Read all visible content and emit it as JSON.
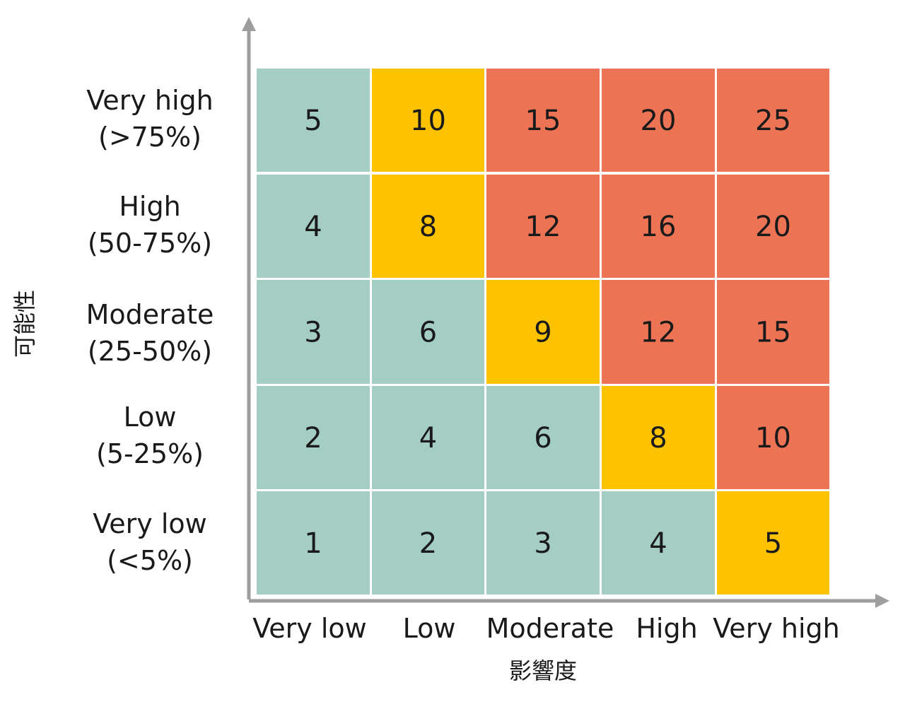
{
  "chart_data": {
    "type": "heatmap",
    "title": "",
    "xlabel": "影響度",
    "ylabel": "可能性",
    "x_categories": [
      "Very low",
      "Low",
      "Moderate",
      "High",
      "Very high"
    ],
    "y_categories": [
      {
        "line1": "Very low",
        "line2": "(<5%)"
      },
      {
        "line1": "Low",
        "line2": "(5-25%)"
      },
      {
        "line1": "Moderate",
        "line2": "(25-50%)"
      },
      {
        "line1": "High",
        "line2": "(50-75%)"
      },
      {
        "line1": "Very high",
        "line2": "(>75%)"
      }
    ],
    "values": [
      [
        1,
        2,
        3,
        4,
        5
      ],
      [
        2,
        4,
        6,
        8,
        10
      ],
      [
        3,
        6,
        9,
        12,
        15
      ],
      [
        4,
        8,
        12,
        16,
        20
      ],
      [
        5,
        10,
        15,
        20,
        25
      ]
    ],
    "levels": [
      [
        "low",
        "low",
        "low",
        "low",
        "medium"
      ],
      [
        "low",
        "low",
        "low",
        "medium",
        "high"
      ],
      [
        "low",
        "low",
        "medium",
        "high",
        "high"
      ],
      [
        "low",
        "medium",
        "high",
        "high",
        "high"
      ],
      [
        "low",
        "medium",
        "high",
        "high",
        "high"
      ]
    ],
    "colors": {
      "low": "#a4cec3",
      "medium": "#fdc300",
      "high": "#ec7455",
      "axis": "#9e9e9e"
    }
  }
}
